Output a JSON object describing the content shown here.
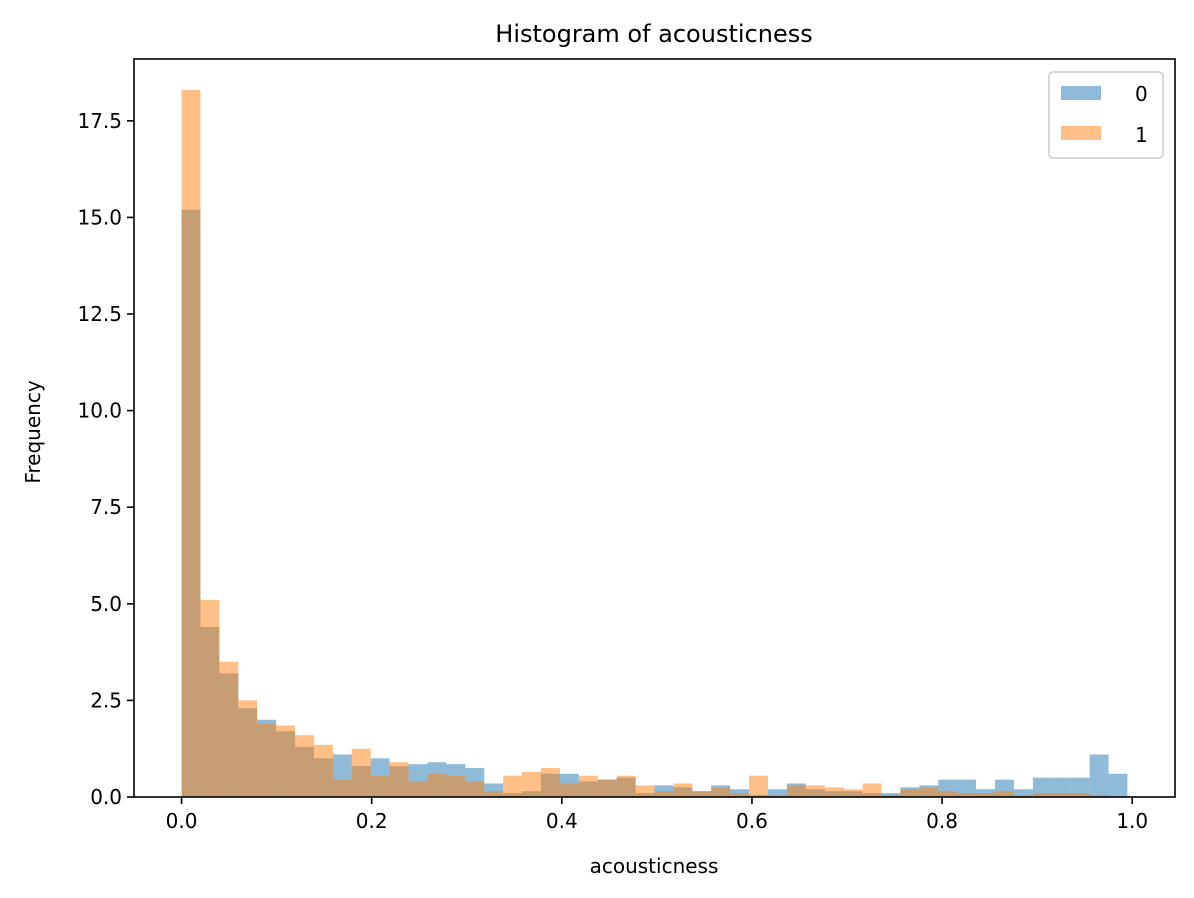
{
  "chart_data": {
    "type": "bar",
    "title": "Histogram of acousticness",
    "xlabel": "acousticness",
    "ylabel": "Frequency",
    "xlim": [
      -0.05,
      1.045
    ],
    "ylim": [
      0,
      19.1
    ],
    "xticks": [
      0.0,
      0.2,
      0.4,
      0.6,
      0.8,
      1.0
    ],
    "xtick_labels": [
      "0.0",
      "0.2",
      "0.4",
      "0.6",
      "0.8",
      "1.0"
    ],
    "yticks": [
      0.0,
      2.5,
      5.0,
      7.5,
      10.0,
      12.5,
      15.0,
      17.5
    ],
    "ytick_labels": [
      "0.0",
      "2.5",
      "5.0",
      "7.5",
      "10.0",
      "12.5",
      "15.0",
      "17.5"
    ],
    "grid": false,
    "legend_position": "top-right",
    "series": [
      {
        "name": "0",
        "color": "#1f77b4",
        "alpha": 0.5,
        "bins": [
          0.0,
          0.0199,
          0.0398,
          0.0597,
          0.0796,
          0.0995,
          0.1194,
          0.1393,
          0.1592,
          0.1791,
          0.199,
          0.2189,
          0.2388,
          0.2587,
          0.2786,
          0.2985,
          0.3184,
          0.3383,
          0.3582,
          0.3781,
          0.398,
          0.4179,
          0.4378,
          0.4577,
          0.4776,
          0.4975,
          0.5174,
          0.5373,
          0.5572,
          0.5771,
          0.597,
          0.6169,
          0.6368,
          0.6567,
          0.6766,
          0.6965,
          0.7164,
          0.7363,
          0.7562,
          0.7761,
          0.796,
          0.8159,
          0.8358,
          0.8557,
          0.8756,
          0.8955,
          0.9154,
          0.9353,
          0.9552,
          0.9751,
          0.995
        ],
        "values": [
          15.2,
          4.4,
          3.2,
          2.3,
          2.0,
          1.7,
          1.3,
          1.0,
          1.1,
          0.8,
          1.0,
          0.8,
          0.85,
          0.9,
          0.85,
          0.75,
          0.35,
          0.1,
          0.15,
          0.6,
          0.6,
          0.4,
          0.45,
          0.5,
          0.1,
          0.3,
          0.25,
          0.15,
          0.3,
          0.2,
          0.05,
          0.2,
          0.35,
          0.2,
          0.15,
          0.15,
          0.1,
          0.1,
          0.25,
          0.3,
          0.45,
          0.45,
          0.2,
          0.45,
          0.2,
          0.5,
          0.5,
          0.5,
          1.1,
          0.6
        ]
      },
      {
        "name": "1",
        "color": "#ff7f0e",
        "alpha": 0.5,
        "bins": [
          0.0,
          0.0199,
          0.0398,
          0.0597,
          0.0796,
          0.0995,
          0.1194,
          0.1393,
          0.1592,
          0.1791,
          0.199,
          0.2189,
          0.2388,
          0.2587,
          0.2786,
          0.2985,
          0.3184,
          0.3383,
          0.3582,
          0.3781,
          0.398,
          0.4179,
          0.4378,
          0.4577,
          0.4776,
          0.4975,
          0.5174,
          0.5373,
          0.5572,
          0.5771,
          0.597,
          0.6169,
          0.6368,
          0.6567,
          0.6766,
          0.6965,
          0.7164,
          0.7363,
          0.7562,
          0.7761,
          0.796,
          0.8159,
          0.8358,
          0.8557,
          0.8756,
          0.8955,
          0.9154,
          0.9353,
          0.9552,
          0.9751,
          0.995
        ],
        "values": [
          18.3,
          5.1,
          3.5,
          2.5,
          1.9,
          1.85,
          1.6,
          1.35,
          0.45,
          1.25,
          0.55,
          0.9,
          0.4,
          0.6,
          0.55,
          0.4,
          0.15,
          0.55,
          0.65,
          0.75,
          0.35,
          0.55,
          0.45,
          0.55,
          0.3,
          0.15,
          0.35,
          0.15,
          0.25,
          0.1,
          0.55,
          0.05,
          0.3,
          0.3,
          0.25,
          0.2,
          0.35,
          0.05,
          0.2,
          0.25,
          0.15,
          0.1,
          0.1,
          0.15,
          0.05,
          0.1,
          0.1,
          0.1,
          0.05,
          0.0
        ]
      }
    ]
  }
}
